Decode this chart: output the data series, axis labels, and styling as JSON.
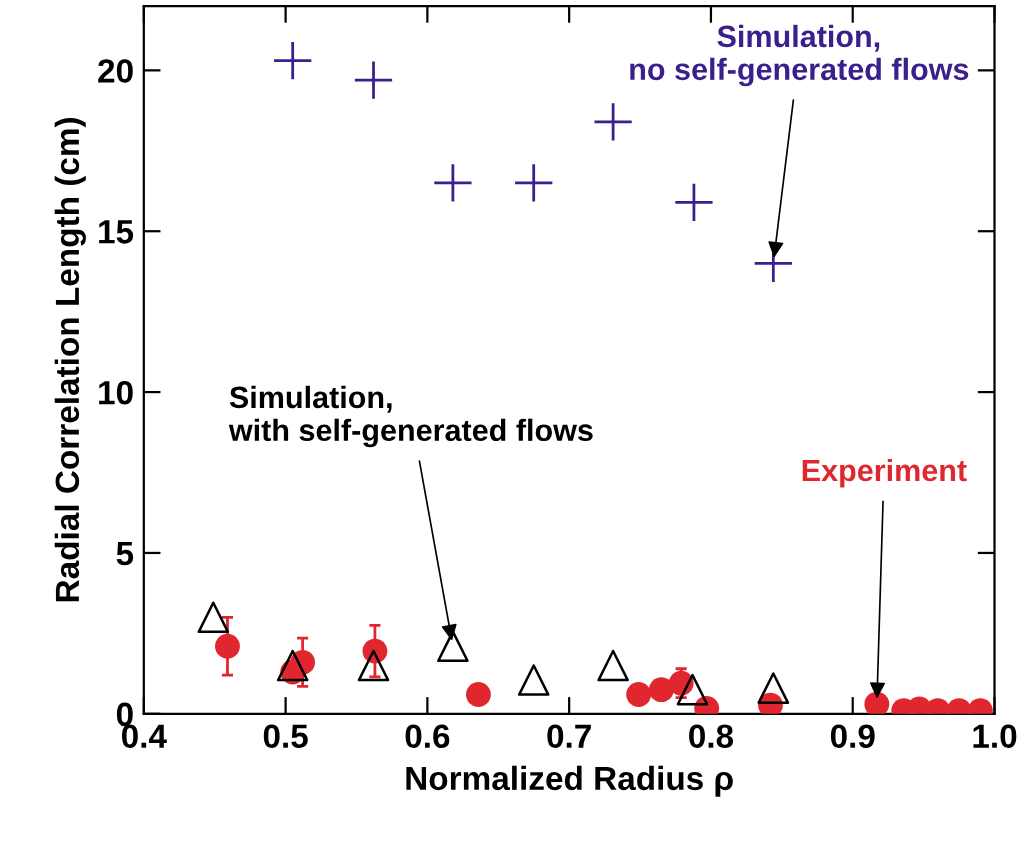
{
  "chart_data": {
    "type": "scatter",
    "xlabel": "Normalized Radius ρ",
    "ylabel": "Radial Correlation Length (cm)",
    "xlim": [
      0.4,
      1.0
    ],
    "ylim": [
      0,
      22
    ],
    "xticks": [
      0.4,
      0.5,
      0.6,
      0.7,
      0.8,
      0.9,
      {
        "value": 1.0,
        "label": "1.0"
      }
    ],
    "yticks": [
      0,
      5,
      10,
      15,
      20
    ],
    "grid": false,
    "series": [
      {
        "color": "#3b1f8c",
        "marker": "cross",
        "x": [
          0.505,
          0.562,
          0.618,
          0.675,
          0.731,
          0.788,
          0.844
        ],
        "values": [
          20.3,
          19.7,
          16.5,
          16.5,
          18.4,
          15.9,
          14.0
        ]
      },
      {
        "color": "#000000",
        "marker": "triangle",
        "x": [
          0.449,
          0.505,
          0.562,
          0.618,
          0.675,
          0.731,
          0.787,
          0.844
        ],
        "values": [
          3.0,
          1.5,
          1.5,
          2.1,
          1.05,
          1.5,
          0.75,
          0.8
        ]
      },
      {
        "color": "#e0262f",
        "marker": "circle",
        "x": [
          0.459,
          0.505,
          0.512,
          0.563,
          0.636,
          0.749,
          0.765,
          0.779,
          0.797,
          0.842,
          0.917,
          0.936,
          0.947,
          0.96,
          0.975,
          0.99
        ],
        "values": [
          2.1,
          1.3,
          1.6,
          1.95,
          0.6,
          0.6,
          0.75,
          0.95,
          0.17,
          0.27,
          0.3,
          0.1,
          0.15,
          0.1,
          0.1,
          0.1
        ],
        "errors": [
          0.9,
          null,
          0.75,
          0.8,
          null,
          null,
          null,
          0.45,
          null,
          null,
          null,
          null,
          null,
          null,
          null,
          null
        ]
      }
    ],
    "annotations": [
      {
        "text": "Simulation,\nno self-generated flows",
        "x": 0.844,
        "y": 14.0
      },
      {
        "text": "Simulation,\nwith self-generated flows",
        "x": 0.618,
        "y": 2.1
      },
      {
        "text": "Experiment",
        "x": 0.917,
        "y": 0.3
      }
    ]
  }
}
